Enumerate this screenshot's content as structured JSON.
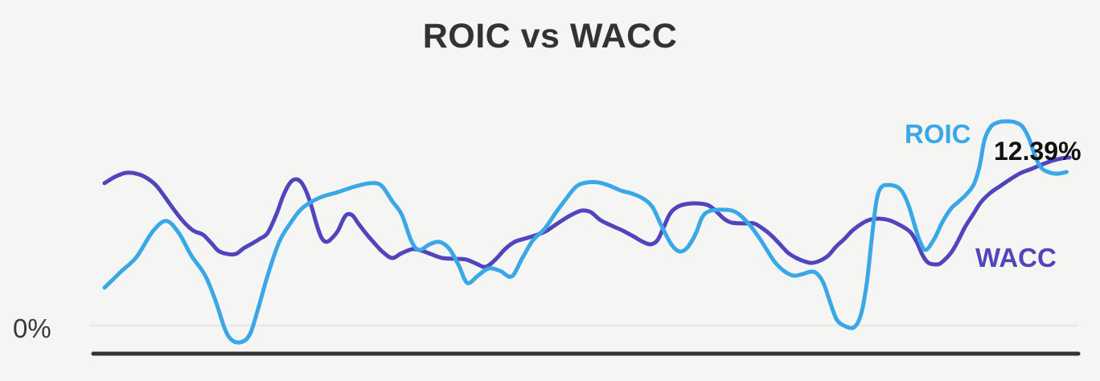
{
  "chart_data": {
    "type": "line",
    "title": "ROIC vs WACC",
    "y_unit": "%",
    "xlabel": "",
    "ylabel": "",
    "x_axis": {
      "tick_labels_visible": false
    },
    "y_axis": {
      "zero_label": "0%",
      "zero_gridline": true,
      "other_ticks_visible": false
    },
    "ylim": [
      -2.1,
      17.0
    ],
    "x_baseline_value": -2.07,
    "grid": "zero-line-only",
    "legend": "inline-labels-at-line-ends",
    "colors": {
      "background": "#f5f5f4",
      "title": "#333333",
      "axis_line": "#333333",
      "zero_gridline": "#e8e8e8",
      "end_value_text": "#111111"
    },
    "annotations": [
      {
        "text": "12.39%",
        "series": "WACC",
        "position": "end-of-line",
        "value": 12.39
      }
    ],
    "series": [
      {
        "name": "ROIC",
        "color": "#3AA8E6",
        "points": [
          [
            0,
            2.79
          ],
          [
            0.017,
            3.97
          ],
          [
            0.033,
            5.04
          ],
          [
            0.05,
            6.94
          ],
          [
            0.064,
            7.71
          ],
          [
            0.077,
            6.82
          ],
          [
            0.09,
            5.16
          ],
          [
            0.104,
            3.73
          ],
          [
            0.115,
            1.84
          ],
          [
            0.125,
            -0.3
          ],
          [
            0.133,
            -1.13
          ],
          [
            0.143,
            -1.19
          ],
          [
            0.151,
            -0.59
          ],
          [
            0.159,
            1.19
          ],
          [
            0.169,
            3.68
          ],
          [
            0.181,
            6.17
          ],
          [
            0.193,
            7.59
          ],
          [
            0.205,
            8.66
          ],
          [
            0.223,
            9.43
          ],
          [
            0.242,
            9.84
          ],
          [
            0.26,
            10.26
          ],
          [
            0.276,
            10.5
          ],
          [
            0.287,
            10.32
          ],
          [
            0.298,
            9.19
          ],
          [
            0.308,
            8.18
          ],
          [
            0.318,
            6.23
          ],
          [
            0.326,
            5.57
          ],
          [
            0.337,
            5.99
          ],
          [
            0.347,
            6.17
          ],
          [
            0.357,
            5.69
          ],
          [
            0.367,
            4.45
          ],
          [
            0.376,
            3.14
          ],
          [
            0.387,
            3.68
          ],
          [
            0.398,
            4.21
          ],
          [
            0.41,
            4.03
          ],
          [
            0.422,
            3.62
          ],
          [
            0.433,
            4.98
          ],
          [
            0.444,
            6.29
          ],
          [
            0.456,
            7.12
          ],
          [
            0.468,
            8.36
          ],
          [
            0.478,
            9.31
          ],
          [
            0.489,
            10.26
          ],
          [
            0.5,
            10.55
          ],
          [
            0.512,
            10.55
          ],
          [
            0.523,
            10.32
          ],
          [
            0.535,
            9.96
          ],
          [
            0.547,
            9.72
          ],
          [
            0.558,
            9.37
          ],
          [
            0.568,
            8.72
          ],
          [
            0.578,
            7.23
          ],
          [
            0.588,
            5.93
          ],
          [
            0.596,
            5.46
          ],
          [
            0.604,
            5.75
          ],
          [
            0.613,
            6.82
          ],
          [
            0.619,
            7.94
          ],
          [
            0.626,
            8.42
          ],
          [
            0.638,
            8.54
          ],
          [
            0.65,
            8.48
          ],
          [
            0.658,
            8.18
          ],
          [
            0.668,
            7.47
          ],
          [
            0.678,
            6.52
          ],
          [
            0.686,
            5.63
          ],
          [
            0.694,
            4.74
          ],
          [
            0.704,
            4.03
          ],
          [
            0.714,
            3.68
          ],
          [
            0.723,
            3.79
          ],
          [
            0.732,
            3.97
          ],
          [
            0.738,
            3.85
          ],
          [
            0.745,
            3.14
          ],
          [
            0.752,
            1.72
          ],
          [
            0.759,
            0.42
          ],
          [
            0.768,
            -0.06
          ],
          [
            0.777,
            -0.12
          ],
          [
            0.784,
            0.83
          ],
          [
            0.79,
            3.14
          ],
          [
            0.795,
            6.34
          ],
          [
            0.8,
            9.19
          ],
          [
            0.805,
            10.2
          ],
          [
            0.813,
            10.37
          ],
          [
            0.822,
            10.2
          ],
          [
            0.828,
            9.72
          ],
          [
            0.834,
            8.72
          ],
          [
            0.84,
            7.29
          ],
          [
            0.845,
            6.23
          ],
          [
            0.851,
            5.57
          ],
          [
            0.86,
            6.4
          ],
          [
            0.868,
            7.59
          ],
          [
            0.877,
            8.6
          ],
          [
            0.885,
            9.13
          ],
          [
            0.893,
            9.66
          ],
          [
            0.901,
            10.43
          ],
          [
            0.907,
            11.8
          ],
          [
            0.912,
            13.7
          ],
          [
            0.919,
            14.7
          ],
          [
            0.927,
            15.0
          ],
          [
            0.935,
            15.06
          ],
          [
            0.943,
            15.0
          ],
          [
            0.951,
            14.7
          ],
          [
            0.958,
            13.81
          ],
          [
            0.965,
            12.39
          ],
          [
            0.971,
            11.62
          ],
          [
            0.978,
            11.32
          ],
          [
            0.987,
            11.2
          ],
          [
            0.997,
            11.32
          ]
        ]
      },
      {
        "name": "WACC",
        "color": "#5145BD",
        "points": [
          [
            0,
            10.5
          ],
          [
            0.011,
            10.97
          ],
          [
            0.022,
            11.26
          ],
          [
            0.033,
            11.2
          ],
          [
            0.043,
            10.91
          ],
          [
            0.053,
            10.37
          ],
          [
            0.062,
            9.54
          ],
          [
            0.072,
            8.54
          ],
          [
            0.082,
            7.65
          ],
          [
            0.092,
            7.0
          ],
          [
            0.102,
            6.7
          ],
          [
            0.111,
            6.05
          ],
          [
            0.118,
            5.51
          ],
          [
            0.127,
            5.28
          ],
          [
            0.136,
            5.28
          ],
          [
            0.144,
            5.69
          ],
          [
            0.153,
            6.05
          ],
          [
            0.161,
            6.4
          ],
          [
            0.169,
            6.82
          ],
          [
            0.178,
            8.18
          ],
          [
            0.185,
            9.54
          ],
          [
            0.192,
            10.5
          ],
          [
            0.198,
            10.79
          ],
          [
            0.204,
            10.55
          ],
          [
            0.21,
            9.72
          ],
          [
            0.215,
            8.66
          ],
          [
            0.22,
            7.41
          ],
          [
            0.225,
            6.46
          ],
          [
            0.23,
            6.17
          ],
          [
            0.236,
            6.46
          ],
          [
            0.242,
            7.0
          ],
          [
            0.247,
            7.77
          ],
          [
            0.251,
            8.18
          ],
          [
            0.257,
            8.12
          ],
          [
            0.263,
            7.53
          ],
          [
            0.272,
            6.7
          ],
          [
            0.28,
            6.05
          ],
          [
            0.288,
            5.45
          ],
          [
            0.298,
            4.98
          ],
          [
            0.308,
            5.34
          ],
          [
            0.319,
            5.63
          ],
          [
            0.329,
            5.51
          ],
          [
            0.34,
            5.22
          ],
          [
            0.35,
            4.98
          ],
          [
            0.363,
            4.92
          ],
          [
            0.375,
            4.86
          ],
          [
            0.385,
            4.57
          ],
          [
            0.395,
            4.33
          ],
          [
            0.405,
            4.86
          ],
          [
            0.415,
            5.63
          ],
          [
            0.425,
            6.17
          ],
          [
            0.435,
            6.4
          ],
          [
            0.446,
            6.64
          ],
          [
            0.457,
            6.94
          ],
          [
            0.467,
            7.41
          ],
          [
            0.477,
            7.88
          ],
          [
            0.486,
            8.24
          ],
          [
            0.495,
            8.48
          ],
          [
            0.504,
            8.36
          ],
          [
            0.514,
            7.77
          ],
          [
            0.526,
            7.35
          ],
          [
            0.537,
            7.0
          ],
          [
            0.548,
            6.58
          ],
          [
            0.558,
            6.17
          ],
          [
            0.566,
            5.99
          ],
          [
            0.573,
            6.29
          ],
          [
            0.579,
            7.17
          ],
          [
            0.586,
            8.24
          ],
          [
            0.593,
            8.72
          ],
          [
            0.602,
            8.95
          ],
          [
            0.613,
            9.01
          ],
          [
            0.625,
            8.89
          ],
          [
            0.633,
            8.48
          ],
          [
            0.642,
            7.88
          ],
          [
            0.65,
            7.59
          ],
          [
            0.663,
            7.53
          ],
          [
            0.673,
            7.53
          ],
          [
            0.683,
            7.11
          ],
          [
            0.692,
            6.58
          ],
          [
            0.7,
            5.99
          ],
          [
            0.708,
            5.39
          ],
          [
            0.717,
            4.98
          ],
          [
            0.725,
            4.74
          ],
          [
            0.733,
            4.62
          ],
          [
            0.742,
            4.8
          ],
          [
            0.75,
            5.16
          ],
          [
            0.758,
            5.81
          ],
          [
            0.767,
            6.4
          ],
          [
            0.775,
            7.0
          ],
          [
            0.785,
            7.53
          ],
          [
            0.794,
            7.82
          ],
          [
            0.804,
            7.88
          ],
          [
            0.813,
            7.77
          ],
          [
            0.821,
            7.53
          ],
          [
            0.83,
            7.17
          ],
          [
            0.836,
            6.82
          ],
          [
            0.842,
            6.11
          ],
          [
            0.848,
            5.16
          ],
          [
            0.854,
            4.62
          ],
          [
            0.863,
            4.51
          ],
          [
            0.868,
            4.68
          ],
          [
            0.877,
            5.34
          ],
          [
            0.884,
            6.17
          ],
          [
            0.892,
            7.29
          ],
          [
            0.9,
            8.18
          ],
          [
            0.908,
            9.07
          ],
          [
            0.918,
            9.78
          ],
          [
            0.929,
            10.32
          ],
          [
            0.94,
            10.85
          ],
          [
            0.95,
            11.26
          ],
          [
            0.961,
            11.56
          ],
          [
            0.971,
            11.86
          ],
          [
            0.982,
            12.15
          ],
          [
            0.992,
            12.33
          ],
          [
            1,
            12.39
          ]
        ]
      }
    ]
  }
}
